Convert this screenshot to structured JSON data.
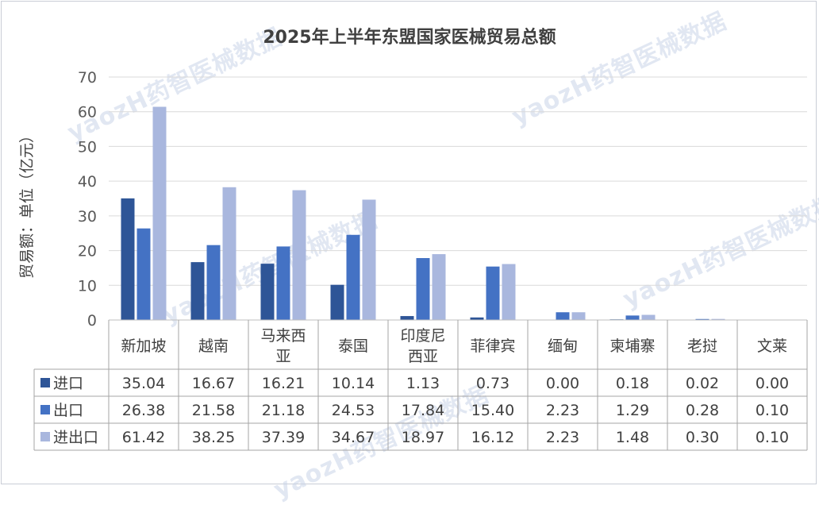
{
  "chart_data": {
    "type": "bar",
    "title": "2025年上半年东盟国家医械贸易总额",
    "ylabel": "贸易额：单位（亿元）",
    "xlabel": "",
    "ylim": [
      0,
      70
    ],
    "yticks": [
      0,
      10,
      20,
      30,
      40,
      50,
      60,
      70
    ],
    "grid": true,
    "legend": "bottom-table",
    "categories": [
      "新加坡",
      "越南",
      "马来西亚",
      "泰国",
      "印度尼西亚",
      "菲律宾",
      "缅甸",
      "柬埔寨",
      "老挝",
      "文莱"
    ],
    "category_lines": [
      [
        "新加坡"
      ],
      [
        "越南"
      ],
      [
        "马来西",
        "亚"
      ],
      [
        "泰国"
      ],
      [
        "印度尼",
        "西亚"
      ],
      [
        "菲律宾"
      ],
      [
        "缅甸"
      ],
      [
        "柬埔寨"
      ],
      [
        "老挝"
      ],
      [
        "文莱"
      ]
    ],
    "series": [
      {
        "name": "进口",
        "color": "#2e5597",
        "values": [
          35.04,
          16.67,
          16.21,
          10.14,
          1.13,
          0.73,
          0.0,
          0.18,
          0.02,
          0.0
        ],
        "labels": [
          "35.04",
          "16.67",
          "16.21",
          "10.14",
          "1.13",
          "0.73",
          "0.00",
          "0.18",
          "0.02",
          "0.00"
        ]
      },
      {
        "name": "出口",
        "color": "#4472c4",
        "values": [
          26.38,
          21.58,
          21.18,
          24.53,
          17.84,
          15.4,
          2.23,
          1.29,
          0.28,
          0.1
        ],
        "labels": [
          "26.38",
          "21.58",
          "21.18",
          "24.53",
          "17.84",
          "15.40",
          "2.23",
          "1.29",
          "0.28",
          "0.10"
        ]
      },
      {
        "name": "进出口",
        "color": "#a9b7de",
        "values": [
          61.42,
          38.25,
          37.39,
          34.67,
          18.97,
          16.12,
          2.23,
          1.48,
          0.3,
          0.1
        ],
        "labels": [
          "61.42",
          "38.25",
          "37.39",
          "34.67",
          "18.97",
          "16.12",
          "2.23",
          "1.48",
          "0.30",
          "0.10"
        ]
      }
    ]
  },
  "watermark": "yaozH药智医械数据"
}
